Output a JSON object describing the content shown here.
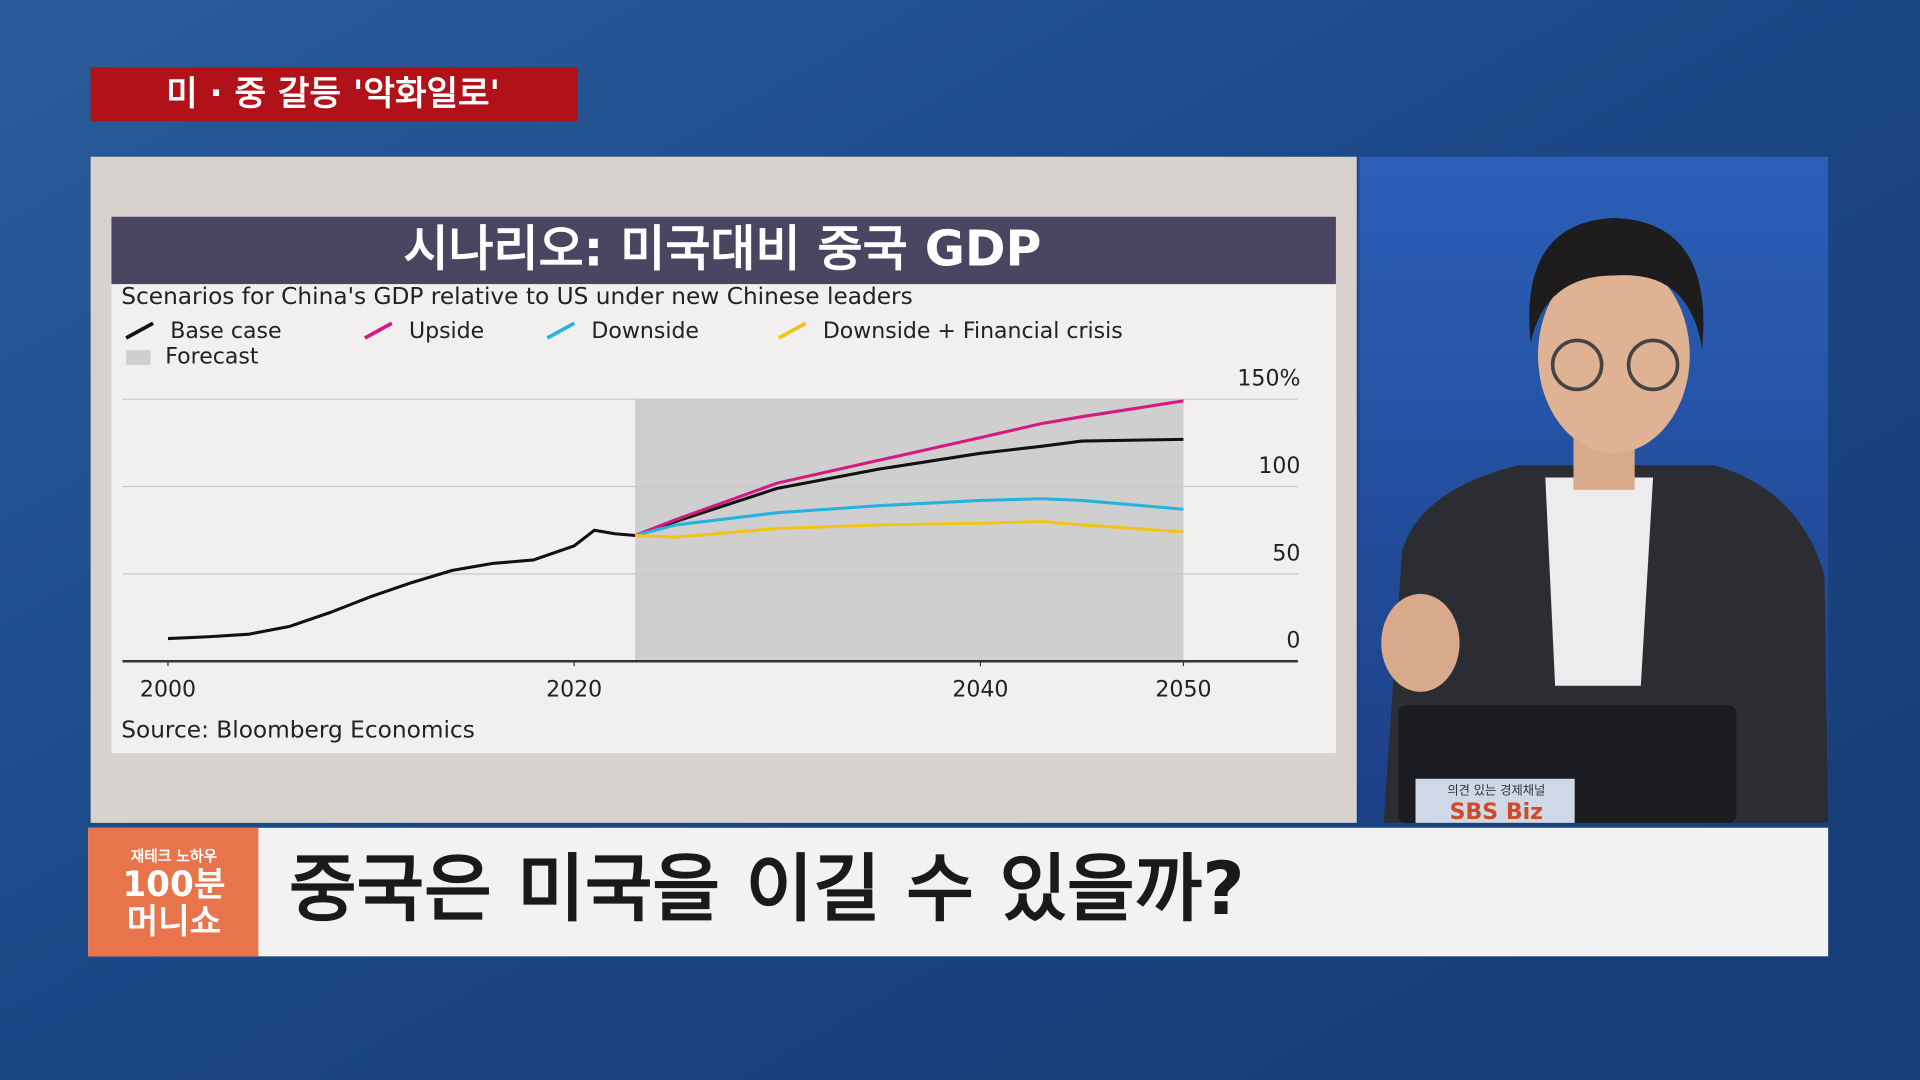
{
  "caption": "미 · 중 갈등 '악화일로'",
  "headline": "중국은 미국을 이길 수 있을까?",
  "logo": [
    "재테크 노하우",
    "100분",
    "머니쇼"
  ],
  "laptop_text": [
    "의견 있는 경제채널",
    "SBS Biz"
  ],
  "chart_data": {
    "type": "line",
    "title": "시나리오: 미국대비 중국 GDP",
    "subtitle": "Scenarios for China's GDP relative to US under new Chinese leaders",
    "source": "Source: Bloomberg Economics",
    "forecast_label": "Forecast",
    "forecast": [
      2023,
      2050
    ],
    "x": [
      2000,
      2002,
      2004,
      2006,
      2008,
      2010,
      2012,
      2014,
      2016,
      2018,
      2020,
      2021,
      2022,
      2023,
      2025,
      2030,
      2035,
      2040,
      2043,
      2045,
      2050
    ],
    "series": [
      {
        "name": "Base case",
        "color": "#111111",
        "values": [
          13,
          14,
          15.5,
          20,
          28,
          37,
          45,
          52,
          56,
          58,
          66,
          75,
          73,
          72,
          80,
          99,
          110,
          119,
          123,
          126,
          127
        ]
      },
      {
        "name": "Upside",
        "color": "#d6197f",
        "values": [
          null,
          null,
          null,
          null,
          null,
          null,
          null,
          null,
          null,
          null,
          null,
          null,
          null,
          72,
          81,
          102,
          115,
          128,
          136,
          140,
          149
        ]
      },
      {
        "name": "Downside",
        "color": "#27b2e0",
        "values": [
          null,
          null,
          null,
          null,
          null,
          null,
          null,
          null,
          null,
          null,
          null,
          null,
          null,
          72,
          78,
          85,
          89,
          92,
          93,
          92,
          87
        ]
      },
      {
        "name": "Downside + Financial crisis",
        "color": "#f0c419",
        "values": [
          null,
          null,
          null,
          null,
          null,
          null,
          null,
          null,
          null,
          null,
          null,
          null,
          null,
          72,
          71,
          76,
          78,
          79,
          80,
          78,
          74
        ]
      }
    ],
    "xlim": [
      1998,
      2056
    ],
    "ylim": [
      0,
      150
    ],
    "xticks": [
      2000,
      2020,
      2040,
      2050
    ],
    "yticks": [
      0,
      50,
      100,
      {
        "value": 150,
        "label": "150%"
      }
    ],
    "grid": true
  }
}
